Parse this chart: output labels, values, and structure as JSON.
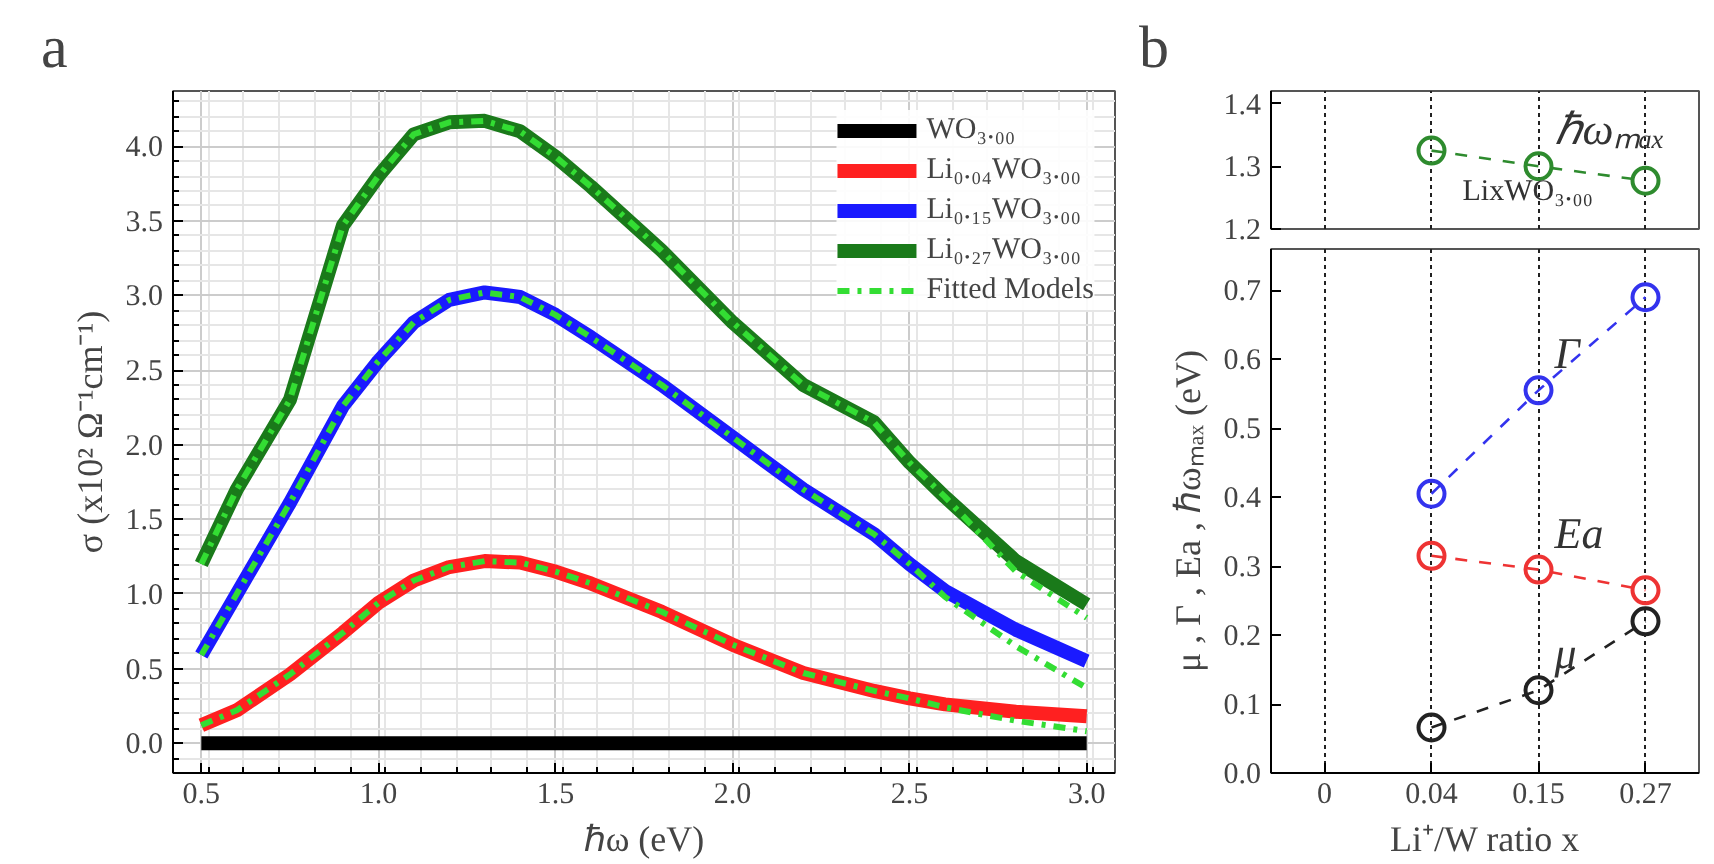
{
  "chart_data": [
    {
      "type": "line",
      "title": "a",
      "xlabel": "ℏω (eV)",
      "ylabel": "σ (x10² Ω⁻¹cm⁻¹)",
      "x": [
        0.5,
        0.6,
        0.75,
        0.9,
        1.0,
        1.1,
        1.2,
        1.3,
        1.4,
        1.5,
        1.6,
        1.8,
        2.0,
        2.2,
        2.4,
        2.5,
        2.6,
        2.8,
        3.0
      ],
      "series": [
        {
          "name": "WO₃.₀₀",
          "color": "#000000",
          "values": [
            0,
            0,
            0,
            0,
            0,
            0,
            0,
            0,
            0,
            0,
            0,
            0,
            0,
            0,
            0,
            0,
            0,
            0,
            0
          ]
        },
        {
          "name": "Li₀.₀₄WO₃.₀₀",
          "color": "#ff2020",
          "values": [
            0.12,
            0.22,
            0.46,
            0.74,
            0.94,
            1.09,
            1.18,
            1.22,
            1.21,
            1.15,
            1.07,
            0.88,
            0.66,
            0.47,
            0.35,
            0.3,
            0.26,
            0.21,
            0.18
          ]
        },
        {
          "name": "Li₀.₁₅WO₃.₀₀",
          "color": "#1a1aff",
          "values": [
            0.59,
            1.0,
            1.61,
            2.26,
            2.56,
            2.82,
            2.97,
            3.02,
            2.99,
            2.87,
            2.72,
            2.4,
            2.05,
            1.7,
            1.4,
            1.2,
            1.02,
            0.76,
            0.55
          ]
        },
        {
          "name": "Li₀.₂₇WO₃.₀₀",
          "color": "#1a7a1a",
          "values": [
            1.2,
            1.7,
            2.3,
            3.47,
            3.8,
            4.08,
            4.16,
            4.17,
            4.1,
            3.93,
            3.73,
            3.3,
            2.82,
            2.4,
            2.15,
            1.88,
            1.65,
            1.22,
            0.93
          ]
        },
        {
          "name": "Fitted Models",
          "color": "#33dd33",
          "line_style": "dashdot",
          "values": [
            0.12,
            0.22,
            0.46,
            0.74,
            0.94,
            1.09,
            1.18,
            1.22,
            1.21,
            1.15,
            1.07,
            0.88,
            0.66,
            0.47,
            0.35,
            0.3,
            0.24,
            0.15,
            0.08
          ]
        },
        {
          "color": "#33dd33",
          "line_style": "dashdot",
          "values": [
            0.59,
            1.0,
            1.61,
            2.26,
            2.56,
            2.82,
            2.97,
            3.02,
            2.99,
            2.87,
            2.72,
            2.4,
            2.05,
            1.7,
            1.4,
            1.2,
            0.98,
            0.65,
            0.37
          ]
        },
        {
          "color": "#33dd33",
          "line_style": "dashdot",
          "values": [
            1.2,
            1.7,
            2.3,
            3.47,
            3.8,
            4.08,
            4.16,
            4.17,
            4.1,
            3.93,
            3.73,
            3.3,
            2.82,
            2.4,
            2.15,
            1.88,
            1.65,
            1.15,
            0.84
          ]
        }
      ],
      "xlim": [
        0.42,
        3.08
      ],
      "xticks": [
        0.5,
        {
          "value": 1,
          "label": "1.0"
        },
        1.5,
        {
          "value": 2,
          "label": "2.0"
        },
        2.5,
        {
          "value": 3,
          "label": "3.0"
        }
      ],
      "ylim": [
        -0.2,
        4.37
      ],
      "yticks": [
        {
          "value": 0,
          "label": "0.0"
        },
        0.5,
        {
          "value": 1,
          "label": "1.0"
        },
        1.5,
        {
          "value": 2,
          "label": "2.0"
        },
        2.5,
        {
          "value": 3,
          "label": "3.0"
        },
        3.5,
        {
          "value": 4,
          "label": "4.0"
        }
      ],
      "grid": true,
      "legend": "top right",
      "line_style": "solid"
    },
    {
      "type": "line",
      "title": "b",
      "categories": [
        "0",
        "0.04",
        "0.15",
        "0.27"
      ],
      "tick_labels": "y",
      "ylim": [
        1.2,
        1.42
      ],
      "yticks": [
        1.2,
        1.3,
        1.4
      ],
      "grid": "x",
      "marker": "circle",
      "line_style": "dashed",
      "legend": false,
      "annotations": [
        "LixWO₃.₀₀"
      ],
      "series": [
        {
          "name": "ℏωₘₐₓ",
          "color": "#2e8b2e",
          "values": [
            null,
            1.325,
            1.3,
            1.277
          ]
        }
      ]
    },
    {
      "type": "line",
      "categories": [
        "0",
        "0.04",
        "0.15",
        "0.27"
      ],
      "xlabel": "Li⁺/W ratio x",
      "ylabel": "μ , Γ , Ea , ℏωₘₐₓ (eV)",
      "ylim": [
        0,
        0.76
      ],
      "yticks": [
        {
          "value": 0,
          "label": "0.0"
        },
        0.1,
        0.2,
        0.3,
        0.4,
        0.5,
        0.6,
        0.7
      ],
      "grid": "x",
      "marker": "circle",
      "line_style": "dashed",
      "legend": false,
      "series": [
        {
          "name": "μ",
          "color": "#222222",
          "values": [
            null,
            0.066,
            0.12,
            0.22
          ]
        },
        {
          "name": "Ea",
          "color": "#ee3333",
          "values": [
            null,
            0.315,
            0.295,
            0.265
          ]
        },
        {
          "name": "Γ",
          "color": "#3333ee",
          "values": [
            null,
            0.405,
            0.555,
            0.69
          ]
        }
      ]
    }
  ]
}
